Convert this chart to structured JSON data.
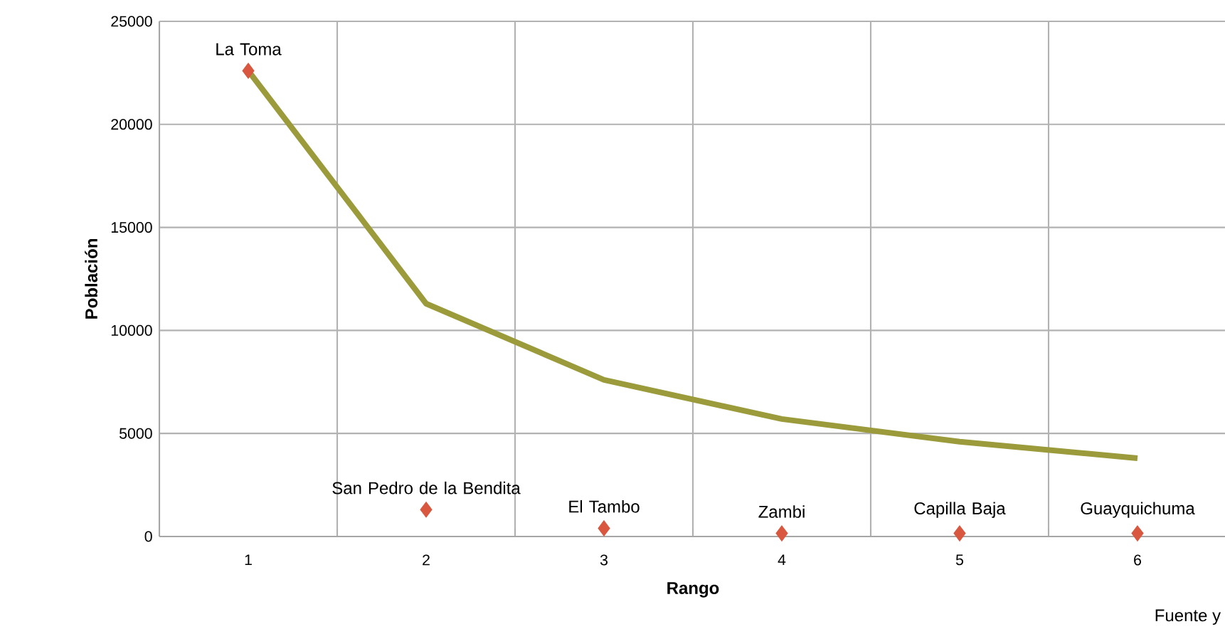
{
  "chart_data": {
    "type": "line",
    "xlabel": "Rango",
    "ylabel": "Población",
    "x": [
      1,
      2,
      3,
      4,
      5,
      6
    ],
    "xlim": [
      0.5,
      6.5
    ],
    "xticks": [
      1,
      2,
      3,
      4,
      5,
      6
    ],
    "ylim": [
      0,
      25000
    ],
    "yticks": [
      0,
      5000,
      10000,
      15000,
      20000,
      25000
    ],
    "grid": true,
    "series": [
      {
        "color": "#9b9b3c",
        "marker": "none",
        "line_style": "solid",
        "values": [
          22600,
          11300,
          7600,
          5700,
          4600,
          3800
        ]
      },
      {
        "type": "scatter",
        "color": "#d9573f",
        "marker": "diamond",
        "values": [
          22600,
          1300,
          400,
          150,
          150,
          150
        ]
      }
    ],
    "annotations": [
      {
        "text": "La Toma",
        "x": 1,
        "y": 22600
      },
      {
        "text": "San Pedro de la Bendita",
        "x": 2,
        "y": 1300
      },
      {
        "text": "El Tambo",
        "x": 3,
        "y": 400
      },
      {
        "text": "Zambi",
        "x": 4,
        "y": 150
      },
      {
        "text": "Capilla Baja",
        "x": 5,
        "y": 150
      },
      {
        "text": "Guayquichuma",
        "x": 6,
        "y": 150
      },
      "Fuente y"
    ]
  }
}
